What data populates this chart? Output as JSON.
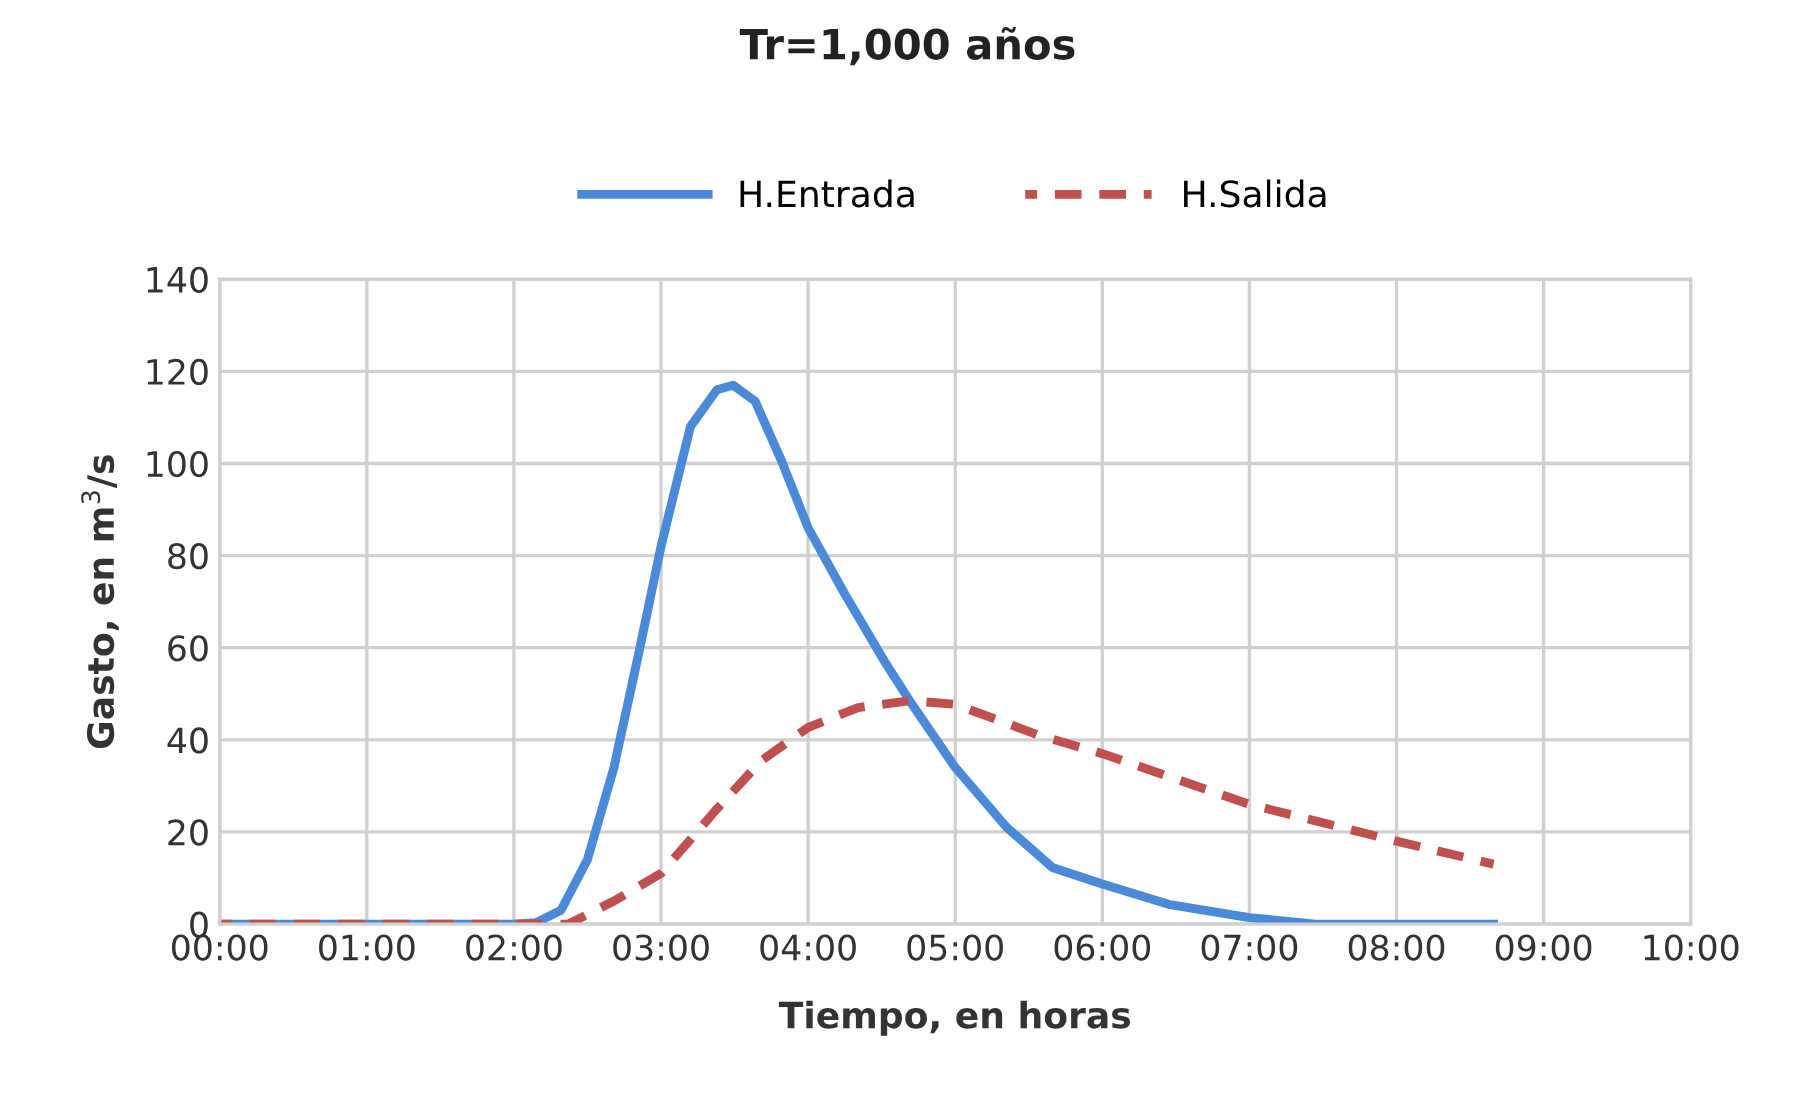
{
  "chart_data": {
    "type": "line",
    "title": "Tr=1,000 años",
    "xlabel": "Tiempo, en horas",
    "ylabel": "Gasto, en m$^{3}$/s",
    "series": [
      {
        "name": "H.Entrada",
        "color": "#4a8ad8",
        "line_style": "solid",
        "x": [
          0,
          2.0,
          2.15,
          2.32,
          2.5,
          2.68,
          2.85,
          3.0,
          3.2,
          3.38,
          3.49,
          3.64,
          3.82,
          4.0,
          4.25,
          4.52,
          4.69,
          5.0,
          5.35,
          5.66,
          6.0,
          6.45,
          7.0,
          7.45,
          8.66
        ],
        "values": [
          0,
          0,
          0.3,
          3,
          14,
          34,
          59,
          82,
          108,
          116,
          117,
          113.5,
          100.5,
          86,
          71.6,
          57,
          48.5,
          34,
          21,
          12.3,
          8.7,
          4.3,
          1.4,
          0,
          0
        ]
      },
      {
        "name": "H.Salida",
        "color": "#c0504d",
        "line_style": "dashed",
        "x": [
          0,
          2.37,
          2.68,
          3.0,
          3.38,
          3.68,
          4.0,
          4.34,
          4.69,
          5.0,
          5.57,
          6.0,
          7.0,
          8.0,
          8.66
        ],
        "values": [
          0,
          0,
          5,
          11,
          25,
          35.4,
          42.7,
          47,
          48.5,
          47.7,
          41,
          37,
          26,
          18,
          13
        ]
      }
    ],
    "xlim": [
      0,
      10
    ],
    "xticks": [
      {
        "value": 0,
        "label": "00:00"
      },
      {
        "value": 1,
        "label": "01:00"
      },
      {
        "value": 2,
        "label": "02:00"
      },
      {
        "value": 3,
        "label": "03:00"
      },
      {
        "value": 4,
        "label": "04:00"
      },
      {
        "value": 5,
        "label": "05:00"
      },
      {
        "value": 6,
        "label": "06:00"
      },
      {
        "value": 7,
        "label": "07:00"
      },
      {
        "value": 8,
        "label": "08:00"
      },
      {
        "value": 9,
        "label": "09:00"
      },
      {
        "value": 10,
        "label": "10:00"
      }
    ],
    "ylim": [
      0,
      140
    ],
    "yticks": [
      0,
      20,
      40,
      60,
      80,
      100,
      120,
      140
    ],
    "grid": true,
    "legend": "top",
    "marker": "none"
  }
}
